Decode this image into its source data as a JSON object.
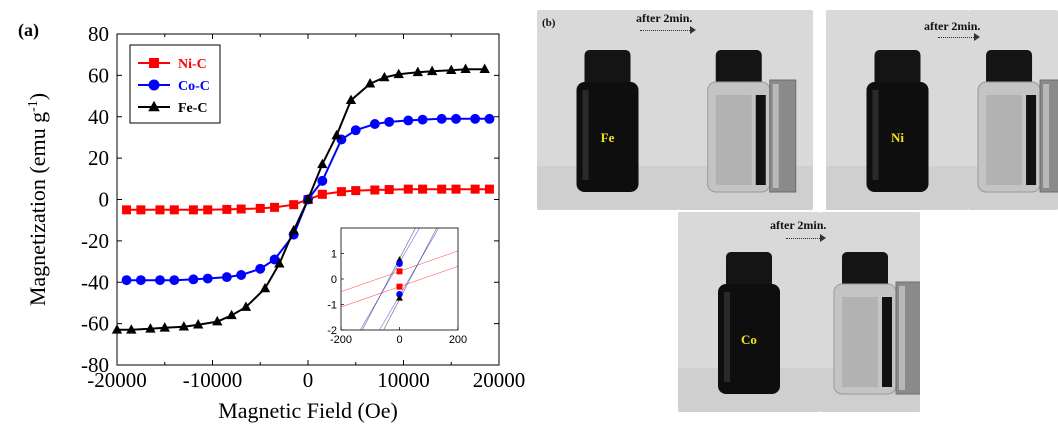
{
  "panel_a_label": "(a)",
  "chart_data": {
    "type": "line",
    "xlabel": "Magnetic Field (Oe)",
    "ylabel_main": "Magnetization (emu g",
    "ylabel_sup": "-1",
    "ylabel_end": ")",
    "xlim": [
      -20000,
      20000
    ],
    "ylim": [
      -80,
      80
    ],
    "xticks": [
      -20000,
      -10000,
      0,
      10000,
      20000
    ],
    "yticks": [
      -80,
      -60,
      -40,
      -20,
      0,
      20,
      40,
      60,
      80
    ],
    "grid": false,
    "legend_position": "top-left",
    "series": [
      {
        "name": "Ni-C",
        "color": "#ff0000",
        "marker": "square",
        "x": [
          -19000,
          -17500,
          -15500,
          -14000,
          -12000,
          -10500,
          -8500,
          -7000,
          -5000,
          -3500,
          -1500,
          0,
          1500,
          3500,
          5000,
          7000,
          8500,
          10500,
          12000,
          14000,
          15500,
          17500,
          19000
        ],
        "y": [
          -5,
          -5,
          -5,
          -5,
          -5,
          -5,
          -4.8,
          -4.6,
          -4.3,
          -3.8,
          -2.5,
          0,
          2.5,
          3.8,
          4.3,
          4.6,
          4.8,
          5,
          5,
          5,
          5,
          5,
          5
        ]
      },
      {
        "name": "Co-C",
        "color": "#0000ff",
        "marker": "circle",
        "x": [
          -19000,
          -17500,
          -15500,
          -14000,
          -12000,
          -10500,
          -8500,
          -7000,
          -5000,
          -3500,
          -1500,
          0,
          1500,
          3500,
          5000,
          7000,
          8500,
          10500,
          12000,
          14000,
          15500,
          17500,
          19000
        ],
        "y": [
          -39,
          -39,
          -39,
          -39,
          -38.6,
          -38.2,
          -37.5,
          -36.5,
          -33.5,
          -29,
          -17,
          0,
          9,
          29,
          33.5,
          36.5,
          37.5,
          38.2,
          38.6,
          39,
          39,
          39,
          39
        ]
      },
      {
        "name": "Fe-C",
        "color": "#000000",
        "marker": "triangle",
        "x": [
          -20000,
          -18500,
          -16500,
          -15000,
          -13000,
          -11500,
          -9500,
          -8000,
          -6500,
          -4500,
          -3000,
          -1500,
          0,
          1500,
          3000,
          4500,
          6500,
          8000,
          9500,
          11500,
          13000,
          15000,
          16500,
          18500
        ],
        "y": [
          -63,
          -63,
          -62.5,
          -62,
          -61.5,
          -60.5,
          -59,
          -56,
          -52,
          -43,
          -31,
          -15,
          0,
          17,
          31,
          48,
          56,
          59,
          60.5,
          61.5,
          62,
          62.5,
          63,
          63
        ]
      }
    ],
    "inset": {
      "xlim": [
        -200,
        200
      ],
      "ylim": [
        -2,
        2
      ],
      "xticks": [
        -200,
        0,
        200
      ],
      "yticks": [
        -2,
        -1,
        0,
        1
      ],
      "marker_points": [
        {
          "y": 0.75,
          "color": "#000000",
          "marker": "triangle"
        },
        {
          "y": 0.6,
          "color": "#0000ff",
          "marker": "circle"
        },
        {
          "y": 0.3,
          "color": "#ff0000",
          "marker": "square"
        },
        {
          "y": -0.3,
          "color": "#ff0000",
          "marker": "square"
        },
        {
          "y": -0.6,
          "color": "#0000ff",
          "marker": "circle"
        },
        {
          "y": -0.75,
          "color": "#000000",
          "marker": "triangle"
        }
      ],
      "lines": [
        {
          "color": "#000000",
          "x1": -200,
          "y1": -5.2,
          "x2": 200,
          "y2": 3.6
        },
        {
          "color": "#000000",
          "x1": -200,
          "y1": -3.6,
          "x2": 200,
          "y2": 5.2
        },
        {
          "color": "#0000ff",
          "x1": -200,
          "y1": -4.6,
          "x2": 200,
          "y2": 3.3
        },
        {
          "color": "#0000ff",
          "x1": -200,
          "y1": -3.3,
          "x2": 200,
          "y2": 4.6
        },
        {
          "color": "#ff0000",
          "x1": -200,
          "y1": -1.1,
          "x2": 200,
          "y2": 0.5
        },
        {
          "color": "#ff0000",
          "x1": -200,
          "y1": -0.5,
          "x2": 200,
          "y2": 1.1
        }
      ]
    }
  },
  "panel_b": {
    "label": "(b)",
    "after_text": "after 2min.",
    "photos": [
      {
        "label": "Fe",
        "type": "dispersed"
      },
      {
        "label": "",
        "type": "separated"
      },
      {
        "label": "Ni",
        "type": "dispersed"
      },
      {
        "label": "",
        "type": "separated"
      },
      {
        "label": "Co",
        "type": "dispersed"
      },
      {
        "label": "",
        "type": "separated"
      }
    ]
  }
}
